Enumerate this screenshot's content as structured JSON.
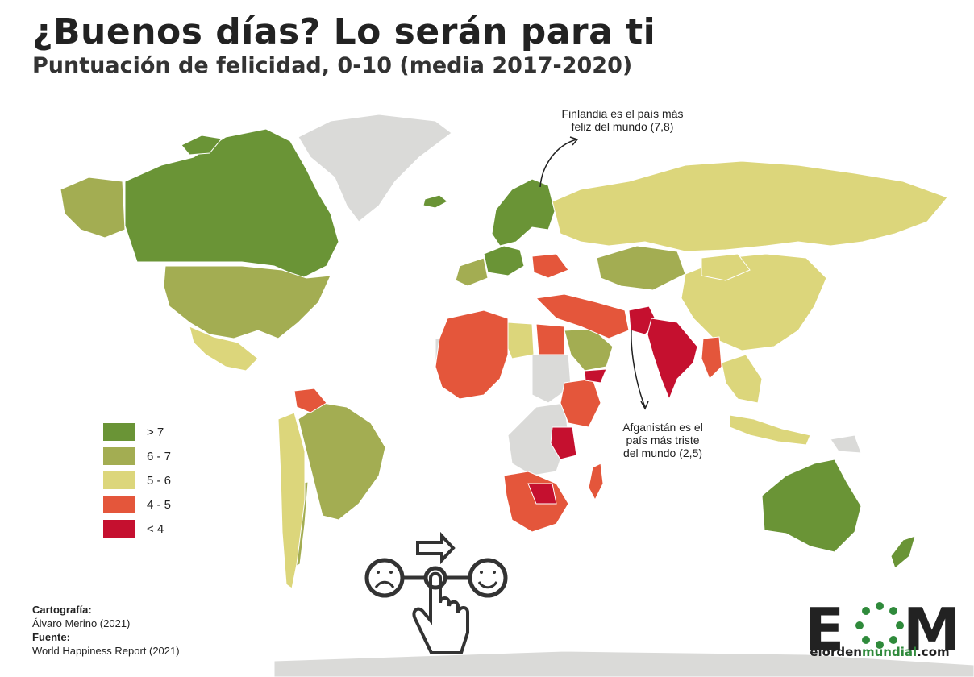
{
  "header": {
    "title": "¿Buenos días? Lo serán para ti",
    "subtitle": "Puntuación de felicidad, 0-10 (media 2017-2020)"
  },
  "colors": {
    "gt7": "#6a9436",
    "r6_7": "#a3ad52",
    "r5_6": "#dcd67b",
    "r4_5": "#e4563b",
    "lt4": "#c5102f",
    "nodata": "#dadad8",
    "ocean": "#ffffff"
  },
  "annotations": {
    "finland": [
      "Finlandia es el país más",
      "feliz del mundo (7,8)"
    ],
    "afghanistan": [
      "Afganistán es el",
      "país más triste",
      "del mundo (2,5)"
    ]
  },
  "legend": {
    "items": [
      {
        "label": "> 7",
        "color": "#6a9436"
      },
      {
        "label": "6 - 7",
        "color": "#a3ad52"
      },
      {
        "label": "5 - 6",
        "color": "#dcd67b"
      },
      {
        "label": "4 - 5",
        "color": "#e4563b"
      },
      {
        "label": "< 4",
        "color": "#c5102f"
      }
    ]
  },
  "credits": {
    "cartography_label": "Cartografía:",
    "cartography_value": "Álvaro Merino (2021)",
    "source_label": "Fuente:",
    "source_value": "World Happiness Report (2021)"
  },
  "logo": {
    "letters": "EOM",
    "url_parts": [
      "elorden",
      "mundial",
      ".com"
    ]
  },
  "icons": {
    "sad_face": "sad-face-icon",
    "happy_face": "happy-face-icon",
    "arrow": "arrow-right-icon",
    "hand": "pointing-hand-icon"
  }
}
